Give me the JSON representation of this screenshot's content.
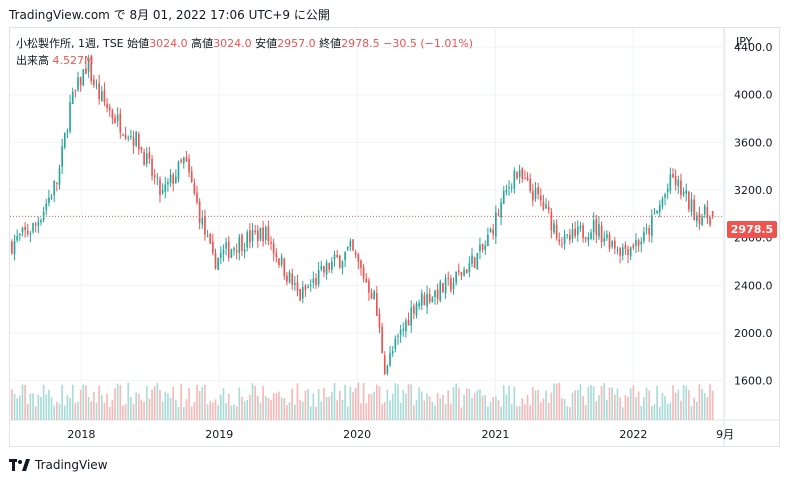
{
  "header": {
    "text": "TradingView.com で 8月 01, 2022 17:06 UTC+9 に公開"
  },
  "legend": {
    "symbol": "小松製作所, 1週, TSE",
    "open_label": "始値",
    "open": "3024.0",
    "high_label": "高値",
    "high": "3024.0",
    "low_label": "安値",
    "low": "2957.0",
    "close_label": "終値",
    "close": "2978.5",
    "change": "−30.5 (−1.01%)",
    "volume_label": "出来高",
    "volume": "4.527M"
  },
  "price_tag": "2978.5",
  "footer": {
    "brand": "TradingView",
    "logo_icon": "tradingview-logo-icon"
  },
  "colors": {
    "up": "#26a69a",
    "down": "#ef5350",
    "up_vol": "#a9dcd7",
    "down_vol": "#f7b9b8",
    "grid": "#f0f3fa"
  },
  "chart_data": {
    "type": "candlestick",
    "currency": "JPY",
    "timeframe": "1W",
    "last_price": 2978.5,
    "y_ticks": [
      1600.0,
      2000.0,
      2400.0,
      2800.0,
      3200.0,
      3600.0,
      4000.0,
      4400.0
    ],
    "y_tick_labels": [
      "1600.0",
      "2000.0",
      "2400.0",
      "2800.0",
      "3200.0",
      "3600.0",
      "4000.0",
      "4400.0"
    ],
    "ylim": [
      1270,
      4560
    ],
    "x_ticks": [
      {
        "label": "2018",
        "date": "2018-01-01"
      },
      {
        "label": "2019",
        "date": "2019-01-01"
      },
      {
        "label": "2020",
        "date": "2020-01-01"
      },
      {
        "label": "2021",
        "date": "2021-01-01"
      },
      {
        "label": "2022",
        "date": "2022-01-01"
      },
      {
        "label": "9月",
        "date": "2022-09-01"
      }
    ],
    "xlim": [
      "2017-06-26",
      "2022-08-29"
    ],
    "anchors": [
      {
        "date": "2017-07-01",
        "price": 2750
      },
      {
        "date": "2017-09-01",
        "price": 2900
      },
      {
        "date": "2017-11-01",
        "price": 3300
      },
      {
        "date": "2017-12-01",
        "price": 3900
      },
      {
        "date": "2018-01-15",
        "price": 4250
      },
      {
        "date": "2018-02-15",
        "price": 4000
      },
      {
        "date": "2018-04-01",
        "price": 3800
      },
      {
        "date": "2018-06-01",
        "price": 3600
      },
      {
        "date": "2018-08-01",
        "price": 3150
      },
      {
        "date": "2018-10-01",
        "price": 3450
      },
      {
        "date": "2018-12-15",
        "price": 2600
      },
      {
        "date": "2019-02-15",
        "price": 2750
      },
      {
        "date": "2019-05-01",
        "price": 2850
      },
      {
        "date": "2019-08-01",
        "price": 2300
      },
      {
        "date": "2019-10-15",
        "price": 2550
      },
      {
        "date": "2019-12-15",
        "price": 2700
      },
      {
        "date": "2020-02-15",
        "price": 2300
      },
      {
        "date": "2020-03-15",
        "price": 1700
      },
      {
        "date": "2020-06-01",
        "price": 2250
      },
      {
        "date": "2020-09-01",
        "price": 2400
      },
      {
        "date": "2020-12-01",
        "price": 2700
      },
      {
        "date": "2021-02-20",
        "price": 3350
      },
      {
        "date": "2021-05-01",
        "price": 3100
      },
      {
        "date": "2021-07-01",
        "price": 2750
      },
      {
        "date": "2021-09-15",
        "price": 2900
      },
      {
        "date": "2021-12-01",
        "price": 2700
      },
      {
        "date": "2022-02-01",
        "price": 2800
      },
      {
        "date": "2022-04-15",
        "price": 3300
      },
      {
        "date": "2022-06-15",
        "price": 3000
      },
      {
        "date": "2022-08-01",
        "price": 2978.5
      }
    ],
    "volume": {
      "typical": 4.5,
      "unit": "M"
    }
  }
}
